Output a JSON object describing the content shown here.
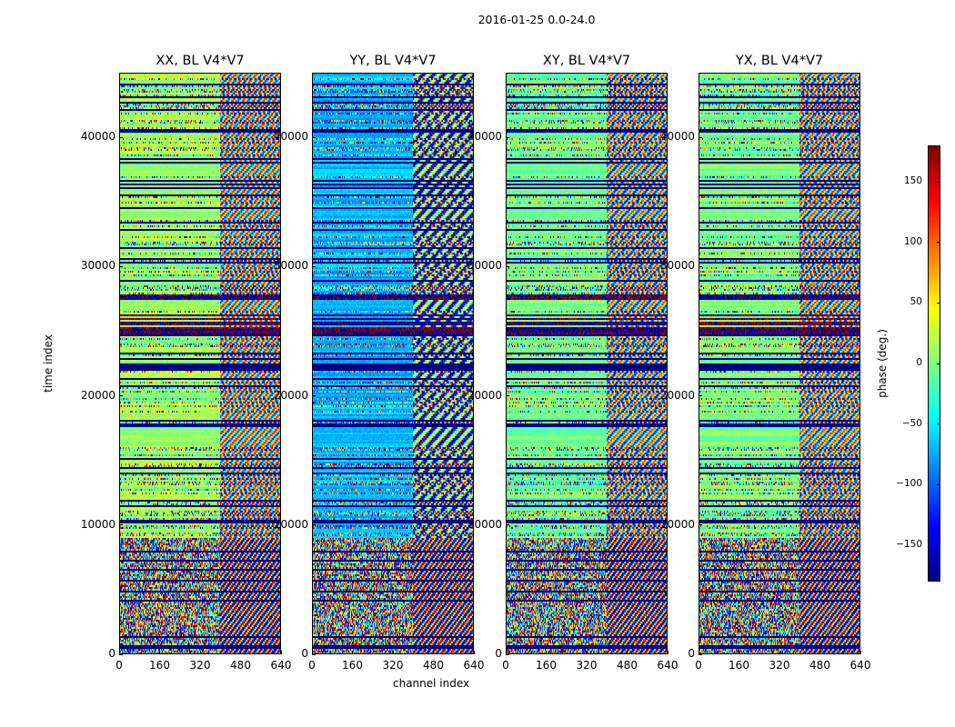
{
  "chart_data": {
    "type": "heatmap",
    "suptitle": "2016-01-25 0.0-24.0",
    "xlabel": "channel index",
    "ylabel": "time index",
    "xlim": [
      0,
      640
    ],
    "ylim": [
      0,
      45000
    ],
    "xticks": [
      "0",
      "160",
      "320",
      "480",
      "640"
    ],
    "yticks": [
      "0",
      "10000",
      "20000",
      "30000",
      "40000"
    ],
    "panels": [
      {
        "title": "XX, BL V4*V7",
        "baseline_phase": 10
      },
      {
        "title": "YY, BL V4*V7",
        "baseline_phase": -70
      },
      {
        "title": "XY, BL V4*V7",
        "baseline_phase": -5
      },
      {
        "title": "YX, BL V4*V7",
        "baseline_phase": 0
      }
    ],
    "colorbar": {
      "label": "phase (deg.)",
      "range": [
        -180,
        180
      ],
      "ticks": [
        "150",
        "100",
        "50",
        "0",
        "−50",
        "−100",
        "−150"
      ],
      "colormap": "jet"
    }
  }
}
